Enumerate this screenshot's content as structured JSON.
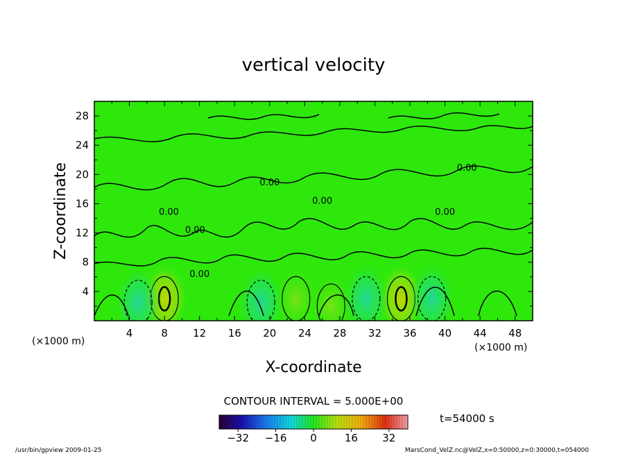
{
  "chart_data": {
    "type": "heatmap",
    "title": "vertical velocity",
    "xlabel": "X-coordinate",
    "ylabel": "Z-coordinate",
    "x_unit_label": "(×1000 m)",
    "y_unit_label": "(×1000 m)",
    "xlim": [
      0,
      50
    ],
    "ylim": [
      0,
      30
    ],
    "x_ticks": [
      4,
      8,
      12,
      16,
      20,
      24,
      28,
      32,
      36,
      40,
      44,
      48
    ],
    "y_ticks": [
      4,
      8,
      12,
      16,
      20,
      24,
      28
    ],
    "contour_interval_text": "CONTOUR INTERVAL = 5.000E+00",
    "contour_label_text": "0.00",
    "contour_label_positions": [
      [
        11.5,
        12.0
      ],
      [
        12.0,
        6.0
      ],
      [
        26.0,
        16.0
      ],
      [
        42.5,
        20.5
      ],
      [
        40.0,
        14.5
      ],
      [
        20.0,
        18.5
      ],
      [
        8.5,
        14.5
      ]
    ],
    "colorbar": {
      "min": -40,
      "max": 40,
      "tick_values": [
        -32,
        -16,
        0,
        16,
        32
      ],
      "tick_labels": [
        "−32",
        "−16",
        "0",
        "16",
        "32"
      ]
    },
    "time_label": "t=54000 s",
    "features": [
      {
        "x": 8.0,
        "z": 3.0,
        "sign": "positive",
        "peak": 12
      },
      {
        "x": 35.0,
        "z": 3.0,
        "sign": "positive",
        "peak": 12
      },
      {
        "x": 23.0,
        "z": 3.0,
        "sign": "positive",
        "peak": 6
      },
      {
        "x": 27.0,
        "z": 2.0,
        "sign": "positive",
        "peak": 6
      },
      {
        "x": 5.0,
        "z": 2.5,
        "sign": "negative",
        "peak": -6
      },
      {
        "x": 19.0,
        "z": 2.5,
        "sign": "negative",
        "peak": -6
      },
      {
        "x": 31.0,
        "z": 3.0,
        "sign": "negative",
        "peak": -6
      },
      {
        "x": 38.5,
        "z": 3.0,
        "sign": "negative",
        "peak": -6
      }
    ]
  },
  "footer": {
    "left_text": "/usr/bin/gpview   2009-01-25",
    "right_text": "MarsCond_VelZ.nc@VelZ,x=0:50000,z=0:30000,t=054000"
  },
  "colors": {
    "background": "#ffffff",
    "field_zero": "#2ee80c",
    "positive_weak": "#7fe31c",
    "positive_strong": "#c8d400",
    "negative_weak": "#21e070",
    "negative_strong": "#1fd3b0"
  }
}
